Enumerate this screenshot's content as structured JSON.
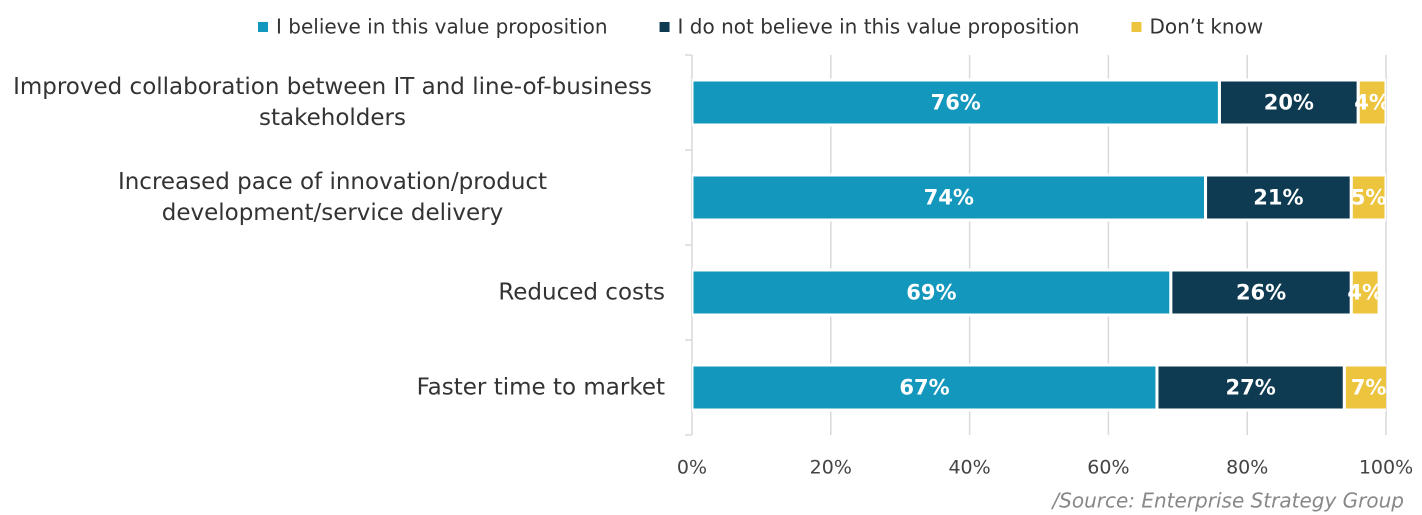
{
  "chart_data": {
    "type": "stacked_barh",
    "categories": [
      "Improved collaboration between IT and line-of-business stakeholders",
      "Increased pace of innovation/product development/service delivery",
      "Reduced costs",
      "Faster time to market"
    ],
    "series": [
      {
        "name": "I believe in this value proposition",
        "color": "#1497bc",
        "values": [
          76,
          74,
          69,
          67
        ],
        "value_labels": [
          "76%",
          "74%",
          "69%",
          "67%"
        ]
      },
      {
        "name": "I do not believe in this value proposition",
        "color": "#0f3b52",
        "values": [
          20,
          21,
          26,
          27
        ],
        "value_labels": [
          "20%",
          "21%",
          "26%",
          "27%"
        ]
      },
      {
        "name": "Don’t know",
        "color": "#edc43e",
        "values": [
          4,
          5,
          4,
          7
        ],
        "value_labels": [
          "4%",
          "5%",
          "4%",
          "7%"
        ]
      }
    ],
    "xlim": [
      0,
      100
    ],
    "xticks": [
      {
        "value": 0,
        "label": "0%"
      },
      {
        "value": 20,
        "label": "20%"
      },
      {
        "value": 40,
        "label": "40%"
      },
      {
        "value": 60,
        "label": "60%"
      },
      {
        "value": 80,
        "label": "80%"
      },
      {
        "value": 100,
        "label": "100%"
      }
    ],
    "grid": true,
    "legend": "top",
    "source": "/Source: Enterprise Strategy Group"
  }
}
